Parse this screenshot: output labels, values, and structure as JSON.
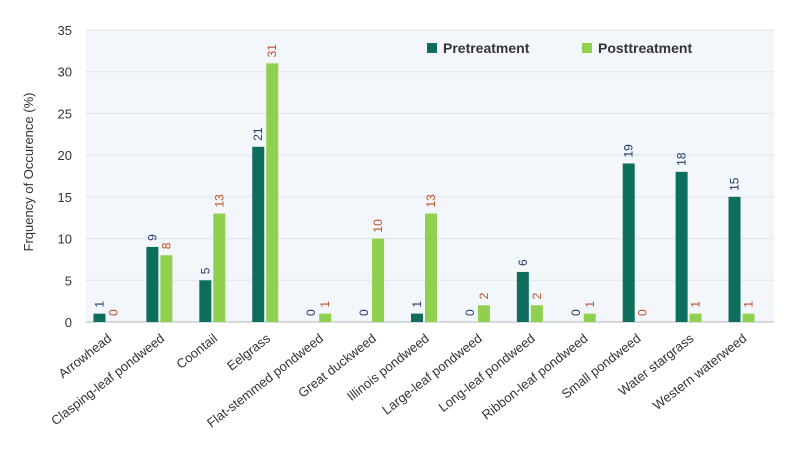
{
  "chart_data": {
    "type": "bar",
    "title": "",
    "xlabel": "",
    "ylabel": "Frquency of Occurence (%)",
    "ylim": [
      0,
      35
    ],
    "yticks": [
      0,
      5,
      10,
      15,
      20,
      25,
      30,
      35
    ],
    "grid": true,
    "legend_position": "top-right",
    "categories": [
      "Arrowhead",
      "Clasping-leaf pondweed",
      "Coontail",
      "Eelgrass",
      "Flat-stemmed pondweed",
      "Great duckweed",
      "Illinois pondweed",
      "Large-leaf pondweed",
      "Long-leaf pondweed",
      "Ribbon-leaf pondweed",
      "Small pondweed",
      "Water stargrass",
      "Western waterweed"
    ],
    "series": [
      {
        "name": "Pretreatment",
        "color": "#0e6e5c",
        "label_color": "#1f3a6e",
        "values": [
          1,
          9,
          5,
          21,
          0,
          0,
          1,
          0,
          6,
          0,
          19,
          18,
          15
        ]
      },
      {
        "name": "Posttreatment",
        "color": "#8fd14f",
        "label_color": "#c0502a",
        "values": [
          0,
          8,
          13,
          31,
          1,
          10,
          13,
          2,
          2,
          1,
          0,
          1,
          1
        ]
      }
    ]
  }
}
